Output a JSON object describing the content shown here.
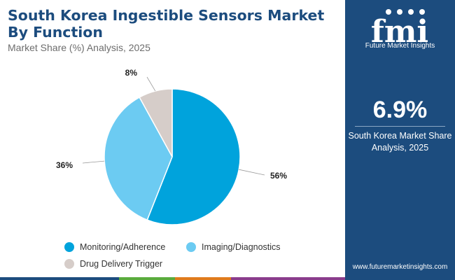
{
  "header": {
    "title": "South Korea Ingestible Sensors Market By Function",
    "subtitle": "Market Share (%) Analysis, 2025"
  },
  "chart_data": {
    "type": "pie",
    "title": "South Korea Ingestible Sensors Market By Function",
    "subtitle": "Market Share (%) Analysis, 2025",
    "categories": [
      "Monitoring/Adherence",
      "Imaging/Diagnostics",
      "Drug Delivery Trigger"
    ],
    "values": [
      56,
      36,
      8
    ],
    "labels": [
      "56%",
      "36%",
      "8%"
    ],
    "colors": [
      "#00a3dc",
      "#6ccbf2",
      "#d6cdc9"
    ],
    "legend_position": "bottom"
  },
  "sidebar": {
    "logo_text": "fmi",
    "logo_subtitle": "Future Market Insights",
    "stat_value": "6.9%",
    "stat_description": "South Korea Market Share Analysis, 2025",
    "website": "www.futuremarketinsights.com",
    "background_color": "#1c4c7e"
  },
  "bottom_bar_colors": [
    "#1c4c7e",
    "#5aab3c",
    "#e07b1c",
    "#8a3c8c"
  ]
}
